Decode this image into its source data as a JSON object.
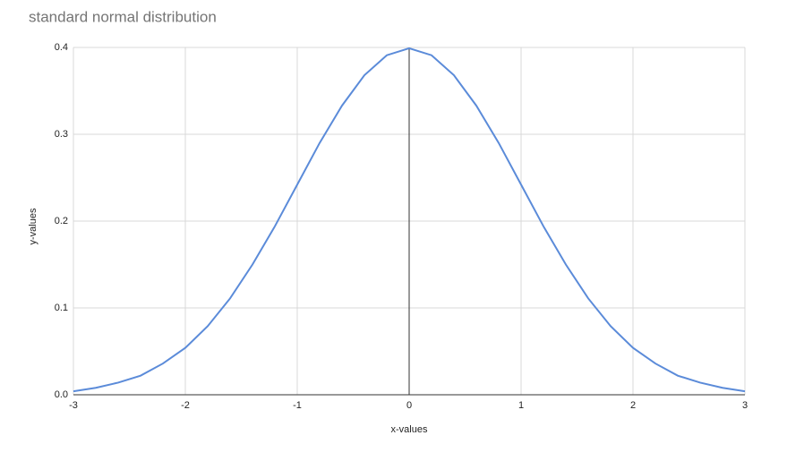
{
  "chart_data": {
    "type": "line",
    "title": "standard normal distribution",
    "x_label": "x-values",
    "y_label": "y-values",
    "x": [
      -3,
      -2.8,
      -2.6,
      -2.4,
      -2.2,
      -2,
      -1.8,
      -1.6,
      -1.4,
      -1.2,
      -1,
      -0.8,
      -0.6,
      -0.4,
      -0.2,
      0,
      0.2,
      0.4,
      0.6,
      0.8,
      1,
      1.2,
      1.4,
      1.6,
      1.8,
      2,
      2.2,
      2.4,
      2.6,
      2.8,
      3
    ],
    "series": [
      {
        "name": "y-values",
        "color": "#5b8bd9",
        "values": [
          0.004,
          0.008,
          0.014,
          0.022,
          0.036,
          0.054,
          0.079,
          0.111,
          0.15,
          0.194,
          0.242,
          0.29,
          0.333,
          0.368,
          0.391,
          0.399,
          0.391,
          0.368,
          0.333,
          0.29,
          0.242,
          0.194,
          0.15,
          0.111,
          0.079,
          0.054,
          0.036,
          0.022,
          0.014,
          0.008,
          0.004
        ]
      }
    ],
    "xlim": [
      -3,
      3
    ],
    "xticks": [
      -3,
      -2,
      -1,
      0,
      1,
      2,
      3
    ],
    "ylim": [
      0,
      0.4
    ],
    "yticks": [
      {
        "value": 0,
        "label": "0.0"
      },
      0.1,
      0.2,
      0.3,
      0.4
    ],
    "grid": true
  }
}
